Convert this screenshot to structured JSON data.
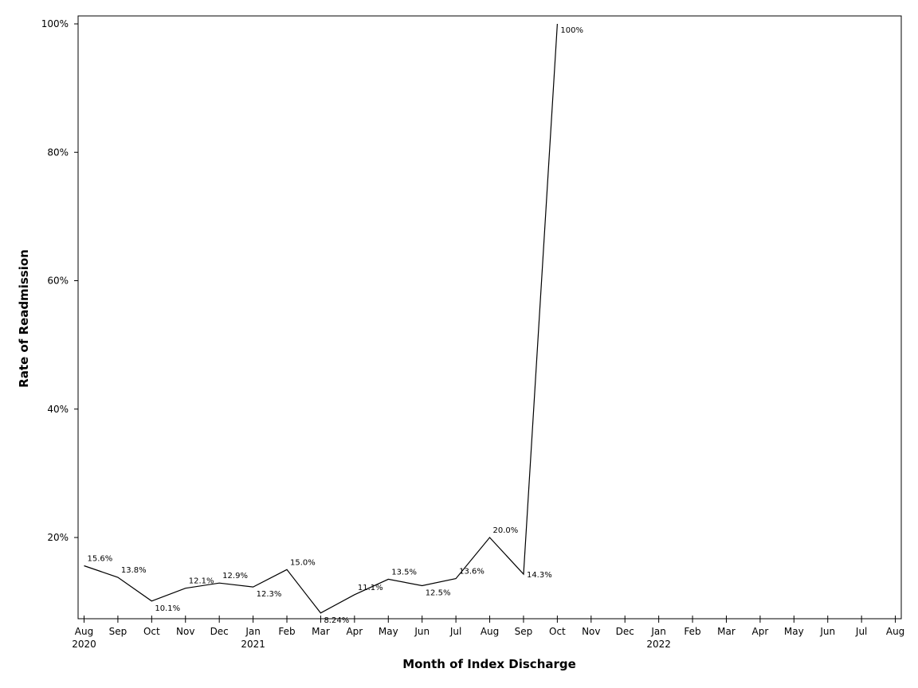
{
  "chart_data": {
    "type": "line",
    "xlabel": "Month of Index Discharge",
    "ylabel": "Rate of Readmission",
    "ylim": [
      7.5,
      100
    ],
    "y_ticks": [
      {
        "value": 20,
        "label": "20%"
      },
      {
        "value": 40,
        "label": "40%"
      },
      {
        "value": 60,
        "label": "60%"
      },
      {
        "value": 80,
        "label": "80%"
      },
      {
        "value": 100,
        "label": "100%"
      }
    ],
    "x_ticks": [
      {
        "month": "Aug",
        "year": "2020"
      },
      {
        "month": "Sep",
        "year": ""
      },
      {
        "month": "Oct",
        "year": ""
      },
      {
        "month": "Nov",
        "year": ""
      },
      {
        "month": "Dec",
        "year": ""
      },
      {
        "month": "Jan",
        "year": "2021"
      },
      {
        "month": "Feb",
        "year": ""
      },
      {
        "month": "Mar",
        "year": ""
      },
      {
        "month": "Apr",
        "year": ""
      },
      {
        "month": "May",
        "year": ""
      },
      {
        "month": "Jun",
        "year": ""
      },
      {
        "month": "Jul",
        "year": ""
      },
      {
        "month": "Aug",
        "year": ""
      },
      {
        "month": "Sep",
        "year": ""
      },
      {
        "month": "Oct",
        "year": ""
      },
      {
        "month": "Nov",
        "year": ""
      },
      {
        "month": "Dec",
        "year": ""
      },
      {
        "month": "Jan",
        "year": "2022"
      },
      {
        "month": "Feb",
        "year": ""
      },
      {
        "month": "Mar",
        "year": ""
      },
      {
        "month": "Apr",
        "year": ""
      },
      {
        "month": "May",
        "year": ""
      },
      {
        "month": "Jun",
        "year": ""
      },
      {
        "month": "Jul",
        "year": ""
      },
      {
        "month": "Aug",
        "year": ""
      }
    ],
    "points": [
      {
        "x": "2020-08",
        "y": 15.6,
        "label": "15.6%",
        "pos": "above"
      },
      {
        "x": "2020-09",
        "y": 13.8,
        "label": "13.8%",
        "pos": "above"
      },
      {
        "x": "2020-10",
        "y": 10.1,
        "label": "10.1%",
        "pos": "below"
      },
      {
        "x": "2020-11",
        "y": 12.1,
        "label": "12.1%",
        "pos": "above"
      },
      {
        "x": "2020-12",
        "y": 12.9,
        "label": "12.9%",
        "pos": "above"
      },
      {
        "x": "2021-01",
        "y": 12.3,
        "label": "12.3%",
        "pos": "below"
      },
      {
        "x": "2021-02",
        "y": 15.0,
        "label": "15.0%",
        "pos": "above"
      },
      {
        "x": "2021-03",
        "y": 8.24,
        "label": "8.24%",
        "pos": "below"
      },
      {
        "x": "2021-04",
        "y": 11.1,
        "label": "11.1%",
        "pos": "above"
      },
      {
        "x": "2021-05",
        "y": 13.5,
        "label": "13.5%",
        "pos": "above"
      },
      {
        "x": "2021-06",
        "y": 12.5,
        "label": "12.5%",
        "pos": "below"
      },
      {
        "x": "2021-07",
        "y": 13.6,
        "label": "13.6%",
        "pos": "above"
      },
      {
        "x": "2021-08",
        "y": 20.0,
        "label": "20.0%",
        "pos": "above"
      },
      {
        "x": "2021-09",
        "y": 14.3,
        "label": "14.3%",
        "pos": "right"
      },
      {
        "x": "2021-10",
        "y": 100,
        "label": "100%",
        "pos": "right"
      }
    ],
    "grid": false,
    "legend": "none"
  }
}
